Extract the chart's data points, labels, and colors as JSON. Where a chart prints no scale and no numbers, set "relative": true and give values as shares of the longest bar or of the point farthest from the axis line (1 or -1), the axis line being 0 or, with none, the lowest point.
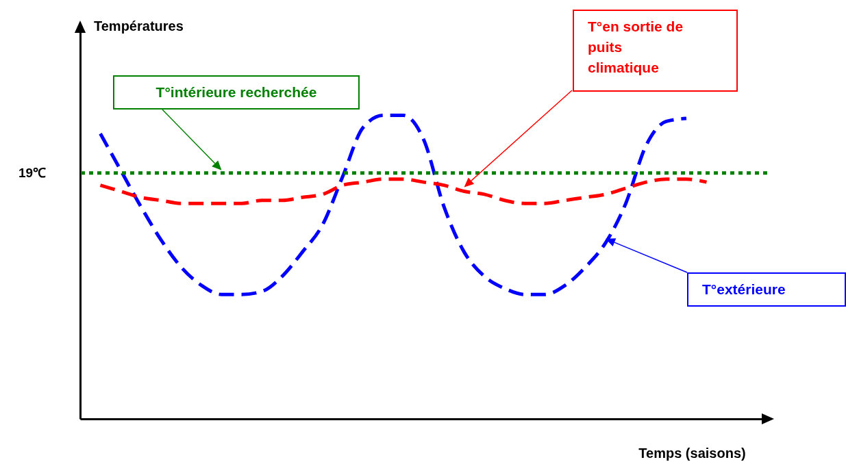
{
  "chart_data": {
    "type": "line",
    "relative": true,
    "xlabel": "Temps (saisons)",
    "line_style": "dashed",
    "categories": [
      null,
      null,
      null,
      null,
      null,
      null,
      null,
      null,
      null,
      null,
      null,
      null,
      null,
      null,
      null,
      null,
      null,
      null,
      null,
      null,
      null,
      null,
      null,
      null,
      null,
      null,
      null,
      null,
      null,
      null,
      null,
      null,
      null,
      null,
      null
    ],
    "series": [
      {
        "name": "T°extérieure",
        "color": "#0000ff",
        "values": [
          null,
          0.94,
          0.82,
          0.7,
          0.59,
          0.5,
          0.44,
          0.41,
          0.41,
          0.42,
          0.47,
          0.55,
          0.64,
          0.8,
          0.96,
          1.0,
          1.0,
          0.92,
          0.7,
          0.55,
          0.47,
          0.43,
          0.41,
          0.41,
          0.44,
          0.5,
          0.58,
          0.71,
          0.9,
          0.98,
          0.99,
          null,
          null,
          null,
          null
        ]
      },
      {
        "name": "T°en sortie de puits climatique",
        "color": "#ff0000",
        "values": [
          null,
          0.77,
          0.75,
          0.73,
          0.72,
          0.71,
          0.71,
          0.71,
          0.71,
          0.72,
          0.72,
          0.73,
          0.74,
          0.77,
          0.78,
          0.79,
          0.79,
          0.78,
          0.77,
          0.75,
          0.74,
          0.72,
          0.71,
          0.71,
          0.72,
          0.73,
          0.74,
          0.76,
          0.78,
          0.79,
          0.79,
          0.78,
          null,
          null,
          null
        ]
      }
    ],
    "ref_lines": [
      {
        "axis": "y",
        "value": 0.81,
        "label": "19℃",
        "color": "#008000",
        "line_style": "dotted"
      }
    ],
    "annotations": [
      "Températures",
      "T°intérieure recherchée"
    ]
  }
}
